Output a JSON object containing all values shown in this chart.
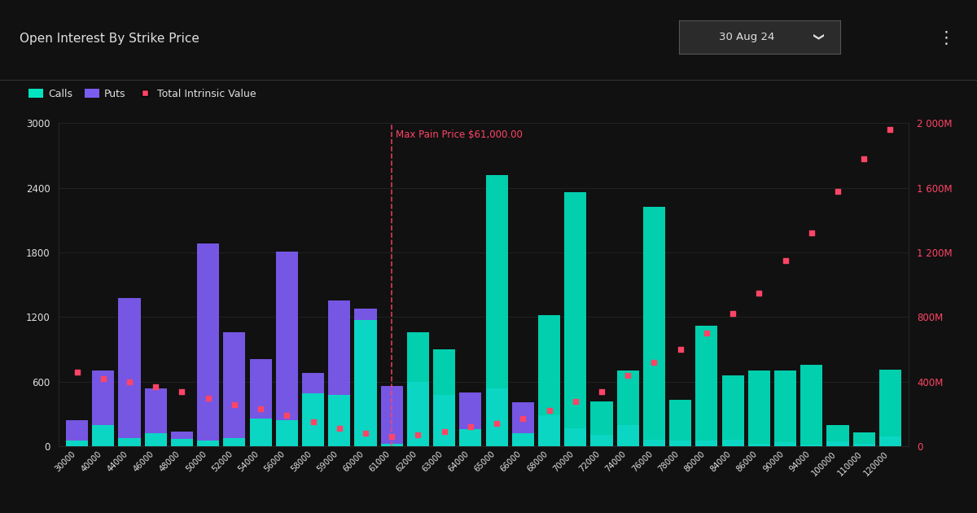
{
  "title": "Open Interest By Strike Price",
  "date_label": "30 Aug 24",
  "bg_color": "#111111",
  "calls_color": "#00e5c0",
  "puts_color": "#7b5cf0",
  "tiv_color": "#ff4466",
  "grid_color": "#252525",
  "text_color": "#e0e0e0",
  "max_pain_price": 61000,
  "max_pain_label": "Max Pain Price $61,000.00",
  "ylim_left": [
    0,
    3000
  ],
  "ylim_right": [
    0,
    2000
  ],
  "right_axis_ticks": [
    0,
    400,
    800,
    1200,
    1600,
    2000
  ],
  "right_axis_labels": [
    "0",
    "400M",
    "800M",
    "1 200M",
    "1 600M",
    "2 000M"
  ],
  "strikes": [
    30000,
    40000,
    44000,
    46000,
    48000,
    50000,
    52000,
    54000,
    56000,
    58000,
    59000,
    60000,
    61000,
    62000,
    63000,
    64000,
    65000,
    66000,
    68000,
    70000,
    72000,
    74000,
    76000,
    78000,
    80000,
    84000,
    86000,
    90000,
    94000,
    100000,
    110000,
    120000
  ],
  "calls": [
    50,
    200,
    80,
    120,
    70,
    55,
    75,
    260,
    240,
    490,
    480,
    1170,
    25,
    1060,
    900,
    160,
    2520,
    120,
    1220,
    2360,
    420,
    700,
    2220,
    430,
    1120,
    660,
    700,
    700,
    760,
    200,
    130,
    710
  ],
  "puts": [
    240,
    700,
    1380,
    540,
    140,
    1880,
    1060,
    810,
    1810,
    680,
    1350,
    1280,
    560,
    600,
    480,
    500,
    540,
    410,
    290,
    165,
    110,
    200,
    65,
    55,
    55,
    65,
    25,
    35,
    18,
    45,
    25,
    95
  ],
  "tiv": [
    46,
    42,
    40,
    37,
    34,
    30,
    26,
    23,
    19,
    15,
    11,
    8,
    6,
    7,
    9,
    12,
    14,
    17,
    22,
    28,
    34,
    44,
    52,
    60,
    70,
    82,
    95,
    115,
    132,
    158,
    178,
    196
  ]
}
